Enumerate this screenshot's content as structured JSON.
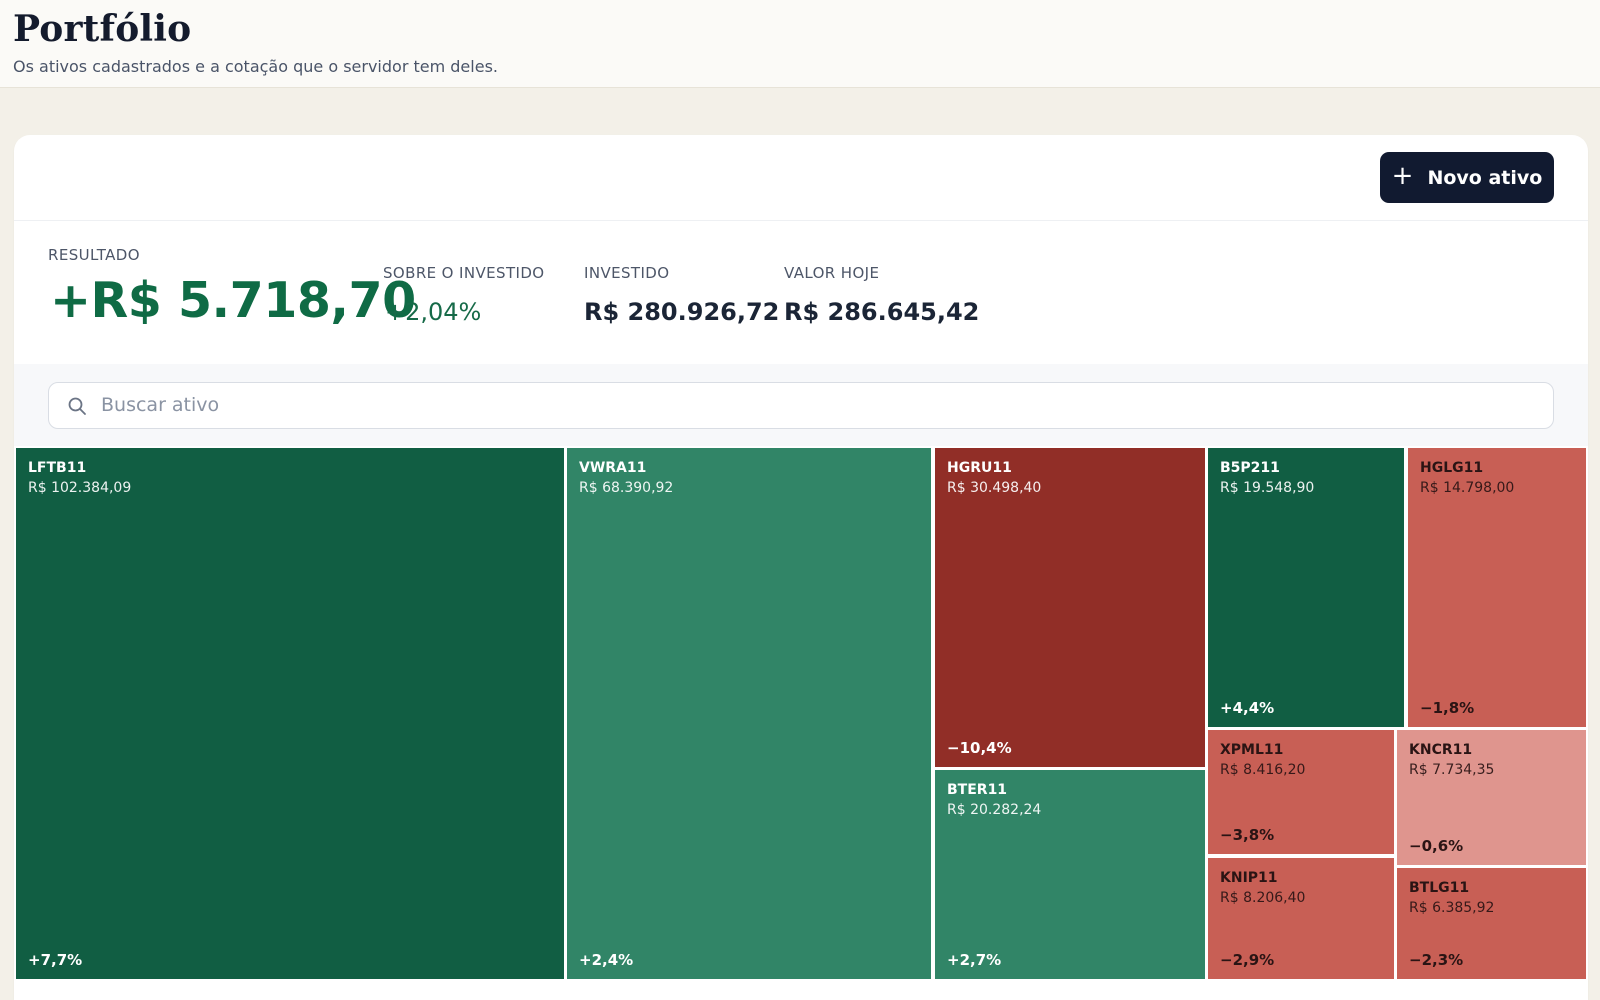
{
  "header": {
    "title": "Portfólio",
    "subtitle": "Os ativos cadastrados e a cotação que o servidor tem deles."
  },
  "toolbar": {
    "new_button_label": "Novo ativo",
    "new_button_icon": "plus-icon"
  },
  "summary": {
    "result_label": "RESULTADO",
    "result_value": "+R$ 5.718,70",
    "return_label": "SOBRE O INVESTIDO",
    "return_value": "+2,04%",
    "invested_label": "INVESTIDO",
    "invested_value": "R$ 280.926,72",
    "current_label": "VALOR HOJE",
    "current_value": "R$ 286.645,42"
  },
  "search": {
    "placeholder": "Buscar ativo",
    "value": ""
  },
  "colors": {
    "strong_gain": "#115e43",
    "gain": "#318567",
    "strong_loss": "#912e27",
    "loss": "#c85f55",
    "light_loss": "#df958e",
    "button": "#111a30"
  },
  "treemap": {
    "assets": [
      {
        "ticker": "LFTB11",
        "value": "R$ 102.384,09",
        "change": "+7,7%"
      },
      {
        "ticker": "VWRA11",
        "value": "R$ 68.390,92",
        "change": "+2,4%"
      },
      {
        "ticker": "HGRU11",
        "value": "R$ 30.498,40",
        "change": "−10,4%"
      },
      {
        "ticker": "BTER11",
        "value": "R$ 20.282,24",
        "change": "+2,7%"
      },
      {
        "ticker": "B5P211",
        "value": "R$ 19.548,90",
        "change": "+4,4%"
      },
      {
        "ticker": "HGLG11",
        "value": "R$ 14.798,00",
        "change": "−1,8%"
      },
      {
        "ticker": "XPML11",
        "value": "R$ 8.416,20",
        "change": "−3,8%"
      },
      {
        "ticker": "KNCR11",
        "value": "R$ 7.734,35",
        "change": "−0,6%"
      },
      {
        "ticker": "KNIP11",
        "value": "R$ 8.206,40",
        "change": "−2,9%"
      },
      {
        "ticker": "BTLG11",
        "value": "R$ 6.385,92",
        "change": "−2,3%"
      }
    ]
  }
}
